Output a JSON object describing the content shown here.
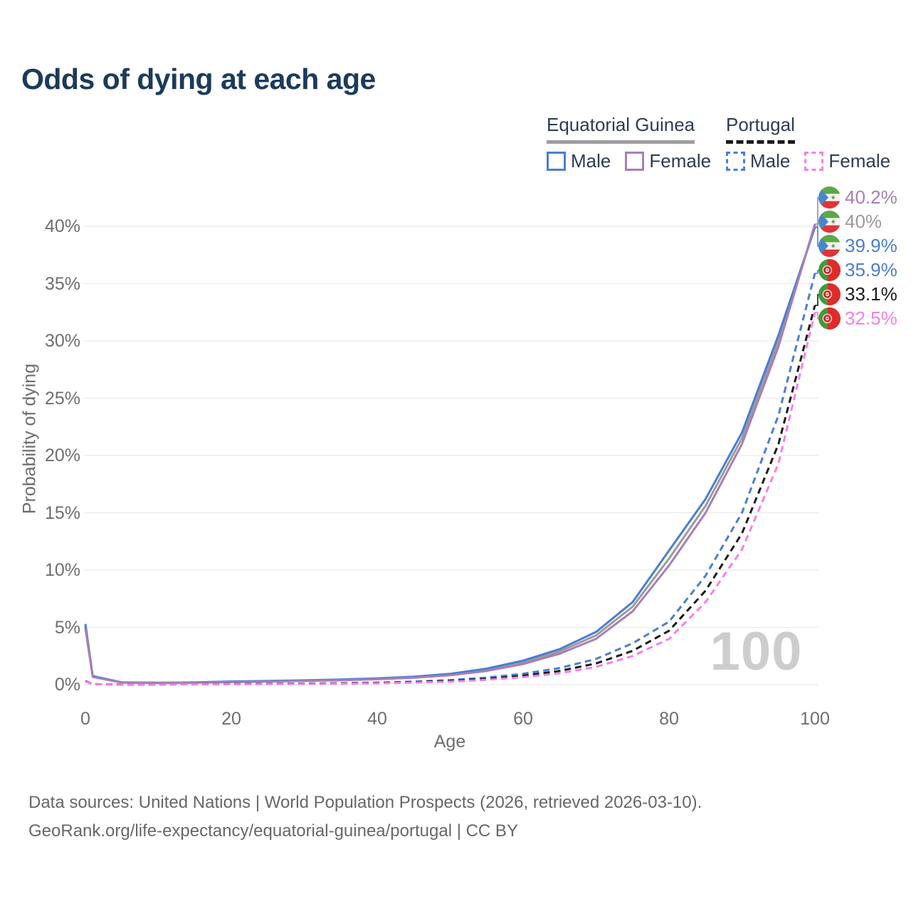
{
  "header": {
    "title": "Odds of dying at each age"
  },
  "legend": {
    "groups": [
      {
        "name": "Equatorial Guinea",
        "line_style": "solid",
        "line_color": "#9e9e9e",
        "items": [
          {
            "label": "Male",
            "color": "#4a7ed2",
            "style": "solid"
          },
          {
            "label": "Female",
            "color": "#a77fb5",
            "style": "solid"
          }
        ]
      },
      {
        "name": "Portugal",
        "line_style": "dashed",
        "line_color": "#1c1c1c",
        "items": [
          {
            "label": "Male",
            "color": "#4a7ed2",
            "style": "dashed"
          },
          {
            "label": "Female",
            "color": "#f87fe8",
            "style": "dashed"
          }
        ]
      }
    ]
  },
  "chart_data": {
    "type": "line",
    "title": "Odds of dying at each age",
    "xlabel": "Age",
    "ylabel": "Probability of dying",
    "xlim": [
      0,
      100
    ],
    "ylim_percent": [
      0,
      42
    ],
    "x_ticks": [
      0,
      20,
      40,
      60,
      80,
      100
    ],
    "y_ticks": [
      "0%",
      "5%",
      "10%",
      "15%",
      "20%",
      "25%",
      "30%",
      "35%",
      "40%"
    ],
    "grid": true,
    "watermark": "100",
    "x": [
      0,
      1,
      5,
      10,
      15,
      20,
      25,
      30,
      35,
      40,
      45,
      50,
      55,
      60,
      65,
      70,
      75,
      80,
      85,
      90,
      95,
      100
    ],
    "series": [
      {
        "name": "Equatorial Guinea Both sexes",
        "country": "equatorial-guinea",
        "sex": "both",
        "style": "solid",
        "color": "#9b9b9b",
        "end_label": "40%",
        "values": [
          5.1,
          0.72,
          0.19,
          0.16,
          0.18,
          0.25,
          0.3,
          0.35,
          0.42,
          0.51,
          0.65,
          0.88,
          1.3,
          1.95,
          2.9,
          4.3,
          6.8,
          11.0,
          15.6,
          21.5,
          30.0,
          40.0
        ]
      },
      {
        "name": "Equatorial Guinea Male",
        "country": "equatorial-guinea",
        "sex": "male",
        "style": "solid",
        "color": "#4a7ed2",
        "end_label": "39.9%",
        "values": [
          5.3,
          0.75,
          0.2,
          0.17,
          0.2,
          0.28,
          0.33,
          0.38,
          0.45,
          0.55,
          0.7,
          0.95,
          1.4,
          2.1,
          3.1,
          4.6,
          7.2,
          11.7,
          16.2,
          22.0,
          30.5,
          39.9
        ]
      },
      {
        "name": "Equatorial Guinea Female",
        "country": "equatorial-guinea",
        "sex": "female",
        "style": "solid",
        "color": "#a77fb5",
        "end_label": "40.2%",
        "values": [
          4.9,
          0.68,
          0.18,
          0.15,
          0.17,
          0.22,
          0.27,
          0.32,
          0.38,
          0.47,
          0.6,
          0.82,
          1.2,
          1.8,
          2.7,
          4.0,
          6.4,
          10.4,
          15.0,
          21.0,
          29.5,
          40.2
        ]
      },
      {
        "name": "Portugal Male",
        "country": "portugal",
        "sex": "male",
        "style": "dashed",
        "color": "#4a7ed2",
        "end_label": "35.9%",
        "values": [
          0.32,
          0.04,
          0.02,
          0.02,
          0.04,
          0.07,
          0.08,
          0.1,
          0.13,
          0.18,
          0.27,
          0.4,
          0.62,
          0.95,
          1.45,
          2.25,
          3.6,
          5.5,
          9.5,
          15.0,
          23.5,
          35.9
        ]
      },
      {
        "name": "Portugal Both sexes",
        "country": "portugal",
        "sex": "both",
        "style": "dashed",
        "color": "#1c1c1c",
        "end_label": "33.1%",
        "values": [
          0.3,
          0.035,
          0.018,
          0.018,
          0.035,
          0.055,
          0.065,
          0.08,
          0.11,
          0.15,
          0.22,
          0.33,
          0.5,
          0.78,
          1.2,
          1.85,
          2.95,
          4.7,
          8.2,
          13.2,
          21.0,
          33.1
        ]
      },
      {
        "name": "Portugal Female",
        "country": "portugal",
        "sex": "female",
        "style": "dashed",
        "color": "#f87fe8",
        "end_label": "32.5%",
        "values": [
          0.28,
          0.03,
          0.015,
          0.015,
          0.03,
          0.04,
          0.05,
          0.06,
          0.085,
          0.12,
          0.18,
          0.27,
          0.42,
          0.65,
          1.0,
          1.55,
          2.5,
          4.0,
          7.2,
          11.8,
          19.3,
          32.5
        ]
      }
    ]
  },
  "footer": {
    "line1": "Data sources: United Nations | World Population Prospects (2026, retrieved 2026-03-10).",
    "line2": "GeoRank.org/life-expectancy/equatorial-guinea/portugal | CC BY"
  }
}
